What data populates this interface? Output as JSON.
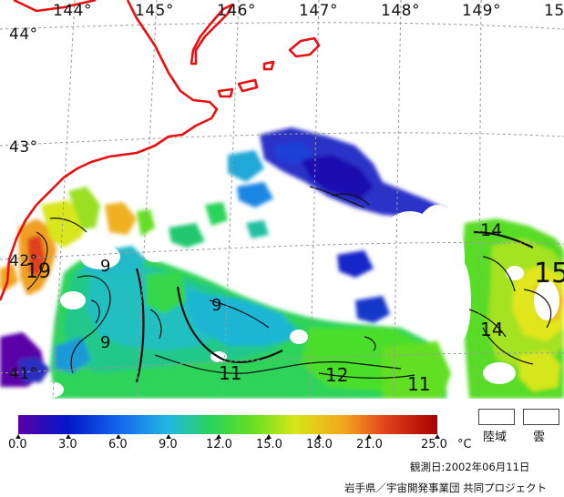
{
  "map": {
    "longitude_labels": [
      "144°",
      "145°",
      "146°",
      "147°",
      "148°",
      "149°",
      "15"
    ],
    "latitude_labels": [
      "44°",
      "43°",
      "42°",
      "41°"
    ],
    "contour_labels": [
      "14",
      "15",
      "19",
      "9",
      "9",
      "9",
      "11",
      "12",
      "11",
      "14"
    ]
  },
  "colorbar": {
    "tick_labels": [
      "0.0",
      "3.0",
      "6.0",
      "9.0",
      "12.0",
      "15.0",
      "18.0",
      "21.0",
      "25.0"
    ],
    "unit": "°C",
    "range": [
      0,
      25
    ],
    "colors": [
      "#5a00a8",
      "#0018c8",
      "#1466f0",
      "#22b8e0",
      "#2ad35a",
      "#66e020",
      "#d6e61a",
      "#f2a41a",
      "#e0401c",
      "#a80000"
    ]
  },
  "legend_boxes": {
    "land_label": "陸域",
    "cloud_label": "雲"
  },
  "observation_date": "観測日:2002年06月11日",
  "credit": "岩手県／宇宙開発事業団  共同プロジェクト",
  "accent_colors": {
    "coastline": "#e81010",
    "grid": "#9a9a9a"
  }
}
